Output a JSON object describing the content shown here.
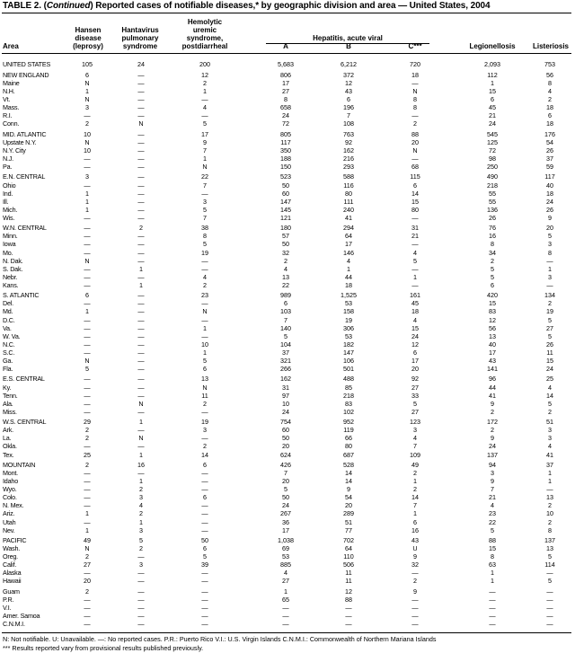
{
  "title": {
    "prefix": "TABLE 2. (",
    "italic": "Continued",
    "rest": ") Reported cases of notifiable diseases,* by geographic division and area — United States, 2004"
  },
  "headers": {
    "area": "Area",
    "hansen": [
      "Hansen",
      "disease",
      "(leprosy)"
    ],
    "hantavirus": [
      "Hantavirus",
      "pulmonary",
      "syndrome"
    ],
    "hus": [
      "Hemolytic",
      "uremic",
      "syndrome,",
      "postdiarrheal"
    ],
    "hepatitis_group": "Hepatitis, acute viral",
    "hep_a": "A",
    "hep_b": "B",
    "hep_c": "C***",
    "legionellosis": "Legionellosis",
    "listeriosis": "Listeriosis"
  },
  "groups": [
    [
      [
        "UNITED STATES",
        "105",
        "24",
        "200",
        "5,683",
        "6,212",
        "720",
        "2,093",
        "753"
      ]
    ],
    [
      [
        "NEW ENGLAND",
        "6",
        "—",
        "12",
        "806",
        "372",
        "18",
        "112",
        "56"
      ],
      [
        "Maine",
        "N",
        "—",
        "2",
        "17",
        "12",
        "—",
        "1",
        "8"
      ],
      [
        "N.H.",
        "1",
        "—",
        "1",
        "27",
        "43",
        "N",
        "15",
        "4"
      ],
      [
        "Vt.",
        "N",
        "—",
        "—",
        "8",
        "6",
        "8",
        "6",
        "2"
      ],
      [
        "Mass.",
        "3",
        "—",
        "4",
        "658",
        "196",
        "8",
        "45",
        "18"
      ],
      [
        "R.I.",
        "—",
        "—",
        "—",
        "24",
        "7",
        "—",
        "21",
        "6"
      ],
      [
        "Conn.",
        "2",
        "N",
        "5",
        "72",
        "108",
        "2",
        "24",
        "18"
      ]
    ],
    [
      [
        "MID. ATLANTIC",
        "10",
        "—",
        "17",
        "805",
        "763",
        "88",
        "545",
        "176"
      ],
      [
        "Upstate N.Y.",
        "N",
        "—",
        "9",
        "117",
        "92",
        "20",
        "125",
        "54"
      ],
      [
        "N.Y. City",
        "10",
        "—",
        "7",
        "350",
        "162",
        "N",
        "72",
        "26"
      ],
      [
        "N.J.",
        "—",
        "—",
        "1",
        "188",
        "216",
        "—",
        "98",
        "37"
      ],
      [
        "Pa.",
        "—",
        "—",
        "N",
        "150",
        "293",
        "68",
        "250",
        "59"
      ]
    ],
    [
      [
        "E.N. CENTRAL",
        "3",
        "—",
        "22",
        "523",
        "588",
        "115",
        "490",
        "117"
      ],
      [
        "Ohio",
        "—",
        "—",
        "7",
        "50",
        "116",
        "6",
        "218",
        "40"
      ],
      [
        "Ind.",
        "1",
        "—",
        "—",
        "60",
        "80",
        "14",
        "55",
        "18"
      ],
      [
        "Ill.",
        "1",
        "—",
        "3",
        "147",
        "111",
        "15",
        "55",
        "24"
      ],
      [
        "Mich.",
        "1",
        "—",
        "5",
        "145",
        "240",
        "80",
        "136",
        "26"
      ],
      [
        "Wis.",
        "—",
        "—",
        "7",
        "121",
        "41",
        "—",
        "26",
        "9"
      ]
    ],
    [
      [
        "W.N. CENTRAL",
        "—",
        "2",
        "38",
        "180",
        "294",
        "31",
        "76",
        "20"
      ],
      [
        "Minn.",
        "—",
        "—",
        "8",
        "57",
        "64",
        "21",
        "16",
        "5"
      ],
      [
        "Iowa",
        "—",
        "—",
        "5",
        "50",
        "17",
        "—",
        "8",
        "3"
      ],
      [
        "Mo.",
        "—",
        "—",
        "19",
        "32",
        "146",
        "4",
        "34",
        "8"
      ],
      [
        "N. Dak.",
        "N",
        "—",
        "—",
        "2",
        "4",
        "5",
        "2",
        "—"
      ],
      [
        "S. Dak.",
        "—",
        "1",
        "—",
        "4",
        "1",
        "—",
        "5",
        "1"
      ],
      [
        "Nebr.",
        "—",
        "—",
        "4",
        "13",
        "44",
        "1",
        "5",
        "3"
      ],
      [
        "Kans.",
        "—",
        "1",
        "2",
        "22",
        "18",
        "—",
        "6",
        "—"
      ]
    ],
    [
      [
        "S. ATLANTIC",
        "6",
        "—",
        "23",
        "989",
        "1,525",
        "161",
        "420",
        "134"
      ],
      [
        "Del.",
        "—",
        "—",
        "—",
        "6",
        "53",
        "45",
        "15",
        "2"
      ],
      [
        "Md.",
        "1",
        "—",
        "N",
        "103",
        "158",
        "18",
        "83",
        "19"
      ],
      [
        "D.C.",
        "—",
        "—",
        "—",
        "7",
        "19",
        "4",
        "12",
        "5"
      ],
      [
        "Va.",
        "—",
        "—",
        "1",
        "140",
        "306",
        "15",
        "56",
        "27"
      ],
      [
        "W. Va.",
        "—",
        "—",
        "—",
        "5",
        "53",
        "24",
        "13",
        "5"
      ],
      [
        "N.C.",
        "—",
        "—",
        "10",
        "104",
        "182",
        "12",
        "40",
        "26"
      ],
      [
        "S.C.",
        "—",
        "—",
        "1",
        "37",
        "147",
        "6",
        "17",
        "11"
      ],
      [
        "Ga.",
        "N",
        "—",
        "5",
        "321",
        "106",
        "17",
        "43",
        "15"
      ],
      [
        "Fla.",
        "5",
        "—",
        "6",
        "266",
        "501",
        "20",
        "141",
        "24"
      ]
    ],
    [
      [
        "E.S. CENTRAL",
        "—",
        "—",
        "13",
        "162",
        "488",
        "92",
        "96",
        "25"
      ],
      [
        "Ky.",
        "—",
        "—",
        "N",
        "31",
        "85",
        "27",
        "44",
        "4"
      ],
      [
        "Tenn.",
        "—",
        "—",
        "11",
        "97",
        "218",
        "33",
        "41",
        "14"
      ],
      [
        "Ala.",
        "—",
        "N",
        "2",
        "10",
        "83",
        "5",
        "9",
        "5"
      ],
      [
        "Miss.",
        "—",
        "—",
        "—",
        "24",
        "102",
        "27",
        "2",
        "2"
      ]
    ],
    [
      [
        "W.S. CENTRAL",
        "29",
        "1",
        "19",
        "754",
        "952",
        "123",
        "172",
        "51"
      ],
      [
        "Ark.",
        "2",
        "—",
        "3",
        "60",
        "119",
        "3",
        "2",
        "3"
      ],
      [
        "La.",
        "2",
        "N",
        "—",
        "50",
        "66",
        "4",
        "9",
        "3"
      ],
      [
        "Okla.",
        "—",
        "—",
        "2",
        "20",
        "80",
        "7",
        "24",
        "4"
      ],
      [
        "Tex.",
        "25",
        "1",
        "14",
        "624",
        "687",
        "109",
        "137",
        "41"
      ]
    ],
    [
      [
        "MOUNTAIN",
        "2",
        "16",
        "6",
        "426",
        "528",
        "49",
        "94",
        "37"
      ],
      [
        "Mont.",
        "—",
        "—",
        "—",
        "7",
        "14",
        "2",
        "3",
        "1"
      ],
      [
        "Idaho",
        "—",
        "1",
        "—",
        "20",
        "14",
        "1",
        "9",
        "1"
      ],
      [
        "Wyo.",
        "—",
        "2",
        "—",
        "5",
        "9",
        "2",
        "7",
        "—"
      ],
      [
        "Colo.",
        "—",
        "3",
        "6",
        "50",
        "54",
        "14",
        "21",
        "13"
      ],
      [
        "N. Mex.",
        "—",
        "4",
        "—",
        "24",
        "20",
        "7",
        "4",
        "2"
      ],
      [
        "Ariz.",
        "1",
        "2",
        "—",
        "267",
        "289",
        "1",
        "23",
        "10"
      ],
      [
        "Utah",
        "—",
        "1",
        "—",
        "36",
        "51",
        "6",
        "22",
        "2"
      ],
      [
        "Nev.",
        "1",
        "3",
        "—",
        "17",
        "77",
        "16",
        "5",
        "8"
      ]
    ],
    [
      [
        "PACIFIC",
        "49",
        "5",
        "50",
        "1,038",
        "702",
        "43",
        "88",
        "137"
      ],
      [
        "Wash.",
        "N",
        "2",
        "6",
        "69",
        "64",
        "U",
        "15",
        "13"
      ],
      [
        "Oreg.",
        "2",
        "—",
        "5",
        "53",
        "110",
        "9",
        "8",
        "5"
      ],
      [
        "Calif.",
        "27",
        "3",
        "39",
        "885",
        "506",
        "32",
        "63",
        "114"
      ],
      [
        "Alaska",
        "—",
        "—",
        "—",
        "4",
        "11",
        "—",
        "1",
        "—"
      ],
      [
        "Hawaii",
        "20",
        "—",
        "—",
        "27",
        "11",
        "2",
        "1",
        "5"
      ]
    ],
    [
      [
        "Guam",
        "2",
        "—",
        "—",
        "1",
        "12",
        "9",
        "—",
        "—"
      ],
      [
        "P.R.",
        "—",
        "—",
        "—",
        "65",
        "88",
        "—",
        "—",
        "—"
      ],
      [
        "V.I.",
        "—",
        "—",
        "—",
        "—",
        "—",
        "—",
        "—",
        "—"
      ],
      [
        "Amer. Samoa",
        "—",
        "—",
        "—",
        "—",
        "—",
        "—",
        "—",
        "—"
      ],
      [
        "C.N.M.I.",
        "—",
        "—",
        "—",
        "—",
        "—",
        "—",
        "—",
        "—"
      ]
    ]
  ],
  "footnotes": {
    "legend": "N: Not notifiable.    U: Unavailable.    —: No reported cases.    P.R.: Puerto Rico    V.I.: U.S. Virgin Islands    C.N.M.I.: Commonwealth of Northern Mariana Islands",
    "note": "***   Results reported vary from provisional results published previously."
  }
}
